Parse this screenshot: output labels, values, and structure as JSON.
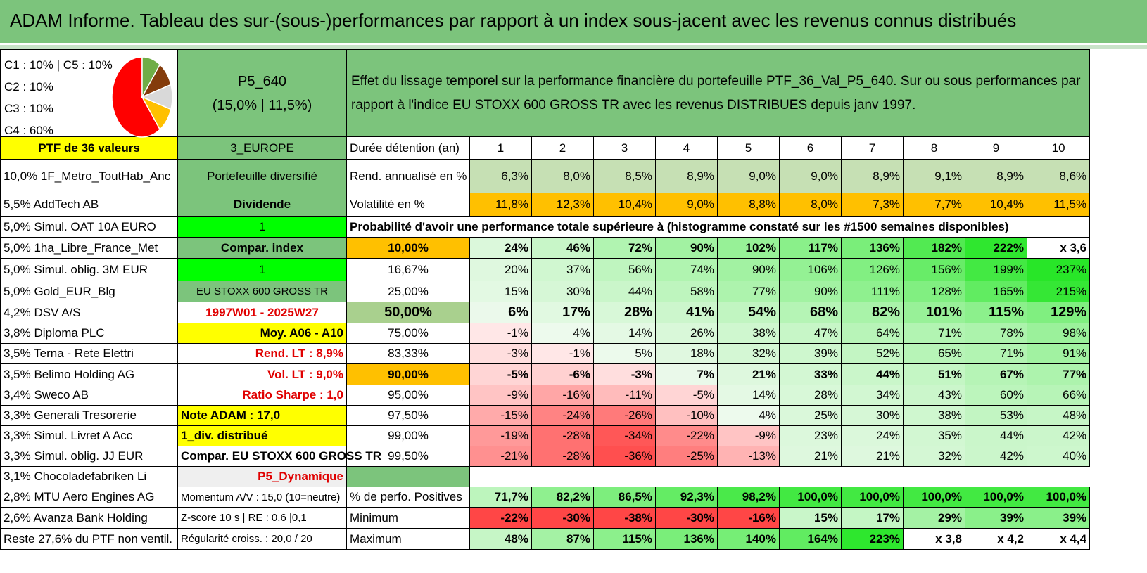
{
  "title": "ADAM Informe. Tableau des sur-(sous-)performances par rapport à un index sous-jacent avec les revenus connus distribués",
  "legend": [
    "C1 : 10% | C5 : 10%",
    "C2 : 10%",
    "C3 : 10%",
    "C4 : 60%"
  ],
  "pie": {
    "slices": [
      {
        "label": "C4",
        "value": 60,
        "color": "#ff0000"
      },
      {
        "label": "C1",
        "value": 10,
        "color": "#70ad47"
      },
      {
        "label": "C2",
        "value": 10,
        "color": "#843c0c"
      },
      {
        "label": "C5",
        "value": 10,
        "color": "#d9d9d9"
      },
      {
        "label": "C3",
        "value": 10,
        "color": "#ffc000"
      }
    ]
  },
  "portfolio": {
    "code": "P5_640",
    "rates": "(15,0% | 11,5%)",
    "header_text": "Effet du lissage temporel sur la performance financière du portefeuille PTF_36_Val_P5_640. Sur ou sous performances par rapport à l'indice EU STOXX 600 GROSS TR avec les revenus DISTRIBUES depuis janv 1997."
  },
  "ptf_label": "PTF de 36 valeurs",
  "region": "3_EUROPE",
  "holdings": [
    "10,0% 1F_Metro_ToutHab_Anc",
    "5,5% AddTech AB",
    "5,0% Simul. OAT 10A EURO",
    "5,0% 1ha_Libre_France_Met",
    "5,0% Simul. oblig. 3M EUR",
    "5,0% Gold_EUR_Blg",
    "4,2% DSV A/S",
    "3,8% Diploma PLC",
    "3,5% Terna - Rete Elettri",
    "3,5% Belimo Holding AG",
    "3,4% Sweco AB",
    "3,3% Generali Tresorerie",
    "3,3% Simul. Livret A Acc",
    "3,3% Simul. oblig. JJ EUR",
    "3,1% Chocoladefabriken Li",
    "2,8% MTU Aero Engines AG",
    "2,6% Avanza Bank Holding",
    "Reste 27,6% du PTF non ventil."
  ],
  "info": [
    "Portefeuille diversifié",
    "Dividende",
    "1",
    "Compar. index",
    "1",
    "EU STOXX 600 GROSS TR",
    "1997W01 - 2025W27",
    "Moy. A06 - A10",
    "Rend. LT : 8,9%",
    "Vol. LT : 9,0%",
    "Ratio Sharpe : 1,0",
    "Note ADAM : 17,0",
    "1_div. distribué",
    "Compar. EU STOXX 600 GROSS TR",
    "P5_Dynamique",
    "Momentum A/V : 15,0 (10=neutre)",
    "Z-score 10 s | RE : 0,6 |0,1",
    "Régularité croiss. : 20,0 / 20"
  ],
  "duration_label": "Durée détention (an)",
  "years": [
    "1",
    "2",
    "3",
    "4",
    "5",
    "6",
    "7",
    "8",
    "9",
    "10"
  ],
  "rend_label": "Rend. annualisé en %",
  "rend": [
    "6,3%",
    "8,0%",
    "8,5%",
    "8,9%",
    "9,0%",
    "9,0%",
    "8,9%",
    "9,1%",
    "8,9%",
    "8,6%"
  ],
  "vol_label": "Volatilité en %",
  "vol": [
    "11,8%",
    "12,3%",
    "10,4%",
    "9,0%",
    "8,8%",
    "8,0%",
    "7,3%",
    "7,7%",
    "10,4%",
    "11,5%"
  ],
  "proba_text": "Probabilité d'avoir une performance totale supérieure à (histogramme constaté sur les #1500 semaines disponibles)",
  "proba_rows": [
    {
      "p": "10,00%",
      "v": [
        "24%",
        "46%",
        "72%",
        "90%",
        "102%",
        "117%",
        "136%",
        "182%",
        "222%",
        "x 3,6"
      ]
    },
    {
      "p": "16,67%",
      "v": [
        "20%",
        "37%",
        "56%",
        "74%",
        "90%",
        "106%",
        "126%",
        "156%",
        "199%",
        "237%"
      ]
    },
    {
      "p": "25,00%",
      "v": [
        "15%",
        "30%",
        "44%",
        "58%",
        "77%",
        "90%",
        "111%",
        "128%",
        "165%",
        "215%"
      ]
    },
    {
      "p": "50,00%",
      "v": [
        "6%",
        "17%",
        "28%",
        "41%",
        "54%",
        "68%",
        "82%",
        "101%",
        "115%",
        "129%"
      ]
    },
    {
      "p": "75,00%",
      "v": [
        "-1%",
        "4%",
        "14%",
        "26%",
        "38%",
        "47%",
        "64%",
        "71%",
        "78%",
        "98%"
      ]
    },
    {
      "p": "83,33%",
      "v": [
        "-3%",
        "-1%",
        "5%",
        "18%",
        "32%",
        "39%",
        "52%",
        "65%",
        "71%",
        "91%"
      ]
    },
    {
      "p": "90,00%",
      "v": [
        "-5%",
        "-6%",
        "-3%",
        "7%",
        "21%",
        "33%",
        "44%",
        "51%",
        "67%",
        "77%"
      ]
    },
    {
      "p": "95,00%",
      "v": [
        "-9%",
        "-16%",
        "-11%",
        "-5%",
        "14%",
        "28%",
        "34%",
        "43%",
        "60%",
        "66%"
      ]
    },
    {
      "p": "97,50%",
      "v": [
        "-15%",
        "-24%",
        "-26%",
        "-10%",
        "4%",
        "25%",
        "30%",
        "38%",
        "53%",
        "48%"
      ]
    },
    {
      "p": "99,00%",
      "v": [
        "-19%",
        "-28%",
        "-34%",
        "-22%",
        "-9%",
        "23%",
        "24%",
        "35%",
        "44%",
        "42%"
      ]
    },
    {
      "p": "99,50%",
      "v": [
        "-21%",
        "-28%",
        "-36%",
        "-25%",
        "-13%",
        "21%",
        "21%",
        "32%",
        "42%",
        "40%"
      ]
    }
  ],
  "pos_label": "% de perfo. Positives",
  "pos": [
    "71,7%",
    "82,2%",
    "86,5%",
    "92,3%",
    "98,2%",
    "100,0%",
    "100,0%",
    "100,0%",
    "100,0%",
    "100,0%"
  ],
  "min_label": "Minimum",
  "min": [
    "-22%",
    "-30%",
    "-38%",
    "-30%",
    "-16%",
    "15%",
    "17%",
    "29%",
    "39%",
    "39%"
  ],
  "max_label": "Maximum",
  "max": [
    "48%",
    "87%",
    "115%",
    "136%",
    "140%",
    "164%",
    "223%",
    "x 3,8",
    "x 4,2",
    "x 4,4"
  ]
}
